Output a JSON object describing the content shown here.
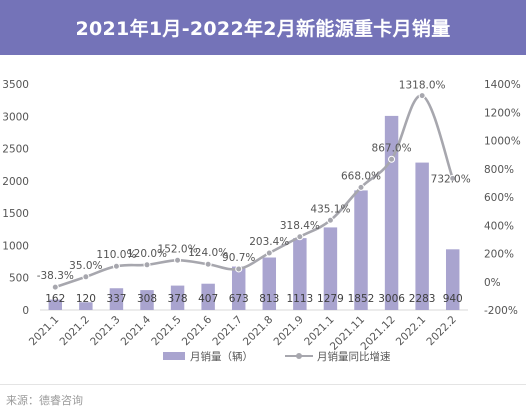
{
  "title": "2021年1月-2022年2月新能源重卡月销量",
  "source": "来源：德睿咨询",
  "chart_data": {
    "type": "bar",
    "categories": [
      "2021.1",
      "2021.2",
      "2021.3",
      "2021.4",
      "2021.5",
      "2021.6",
      "2021.7",
      "2021.8",
      "2021.9",
      "2021.1",
      "2021.11",
      "2021.12",
      "2022.1",
      "2022.2"
    ],
    "series": [
      {
        "name": "月销量（辆）",
        "type": "bar",
        "axis": "left",
        "values": [
          162,
          120,
          337,
          308,
          378,
          407,
          673,
          813,
          1113,
          1279,
          1852,
          3006,
          2283,
          940
        ],
        "labels": [
          "162",
          "120",
          "337",
          "308",
          "378",
          "407",
          "673",
          "813",
          "1113",
          "1279",
          "1852",
          "3006",
          "2283",
          "940"
        ]
      },
      {
        "name": "月销量同比增速",
        "type": "line",
        "axis": "right",
        "values": [
          -38.3,
          35.0,
          110.0,
          120.0,
          152.0,
          124.0,
          90.7,
          203.4,
          318.4,
          435.1,
          668.0,
          867.0,
          1318.0,
          732.0
        ],
        "labels": [
          "-38.3%",
          "35.0%",
          "110.0%",
          "120.0%",
          "152.0%",
          "124.0%",
          "90.7%",
          "203.4%",
          "318.4%",
          "435.1%",
          "668.0%",
          "867.0%",
          "1318.0%",
          "732.0%"
        ]
      }
    ],
    "y_left": {
      "lim": [
        0,
        3500
      ],
      "ticks": [
        "0",
        "500",
        "1000",
        "1500",
        "2000",
        "2500",
        "3000",
        "3500"
      ]
    },
    "y_right": {
      "lim": [
        -200,
        1400
      ],
      "ticks": [
        "-200%",
        "0%",
        "200%",
        "400%",
        "600%",
        "800%",
        "1000%",
        "1200%",
        "1400%"
      ]
    },
    "grid": false,
    "legend_position": "bottom",
    "colors": {
      "bar": "#a9a4cf",
      "line": "#a7a7ae",
      "bar_label": "#ffffff"
    }
  }
}
